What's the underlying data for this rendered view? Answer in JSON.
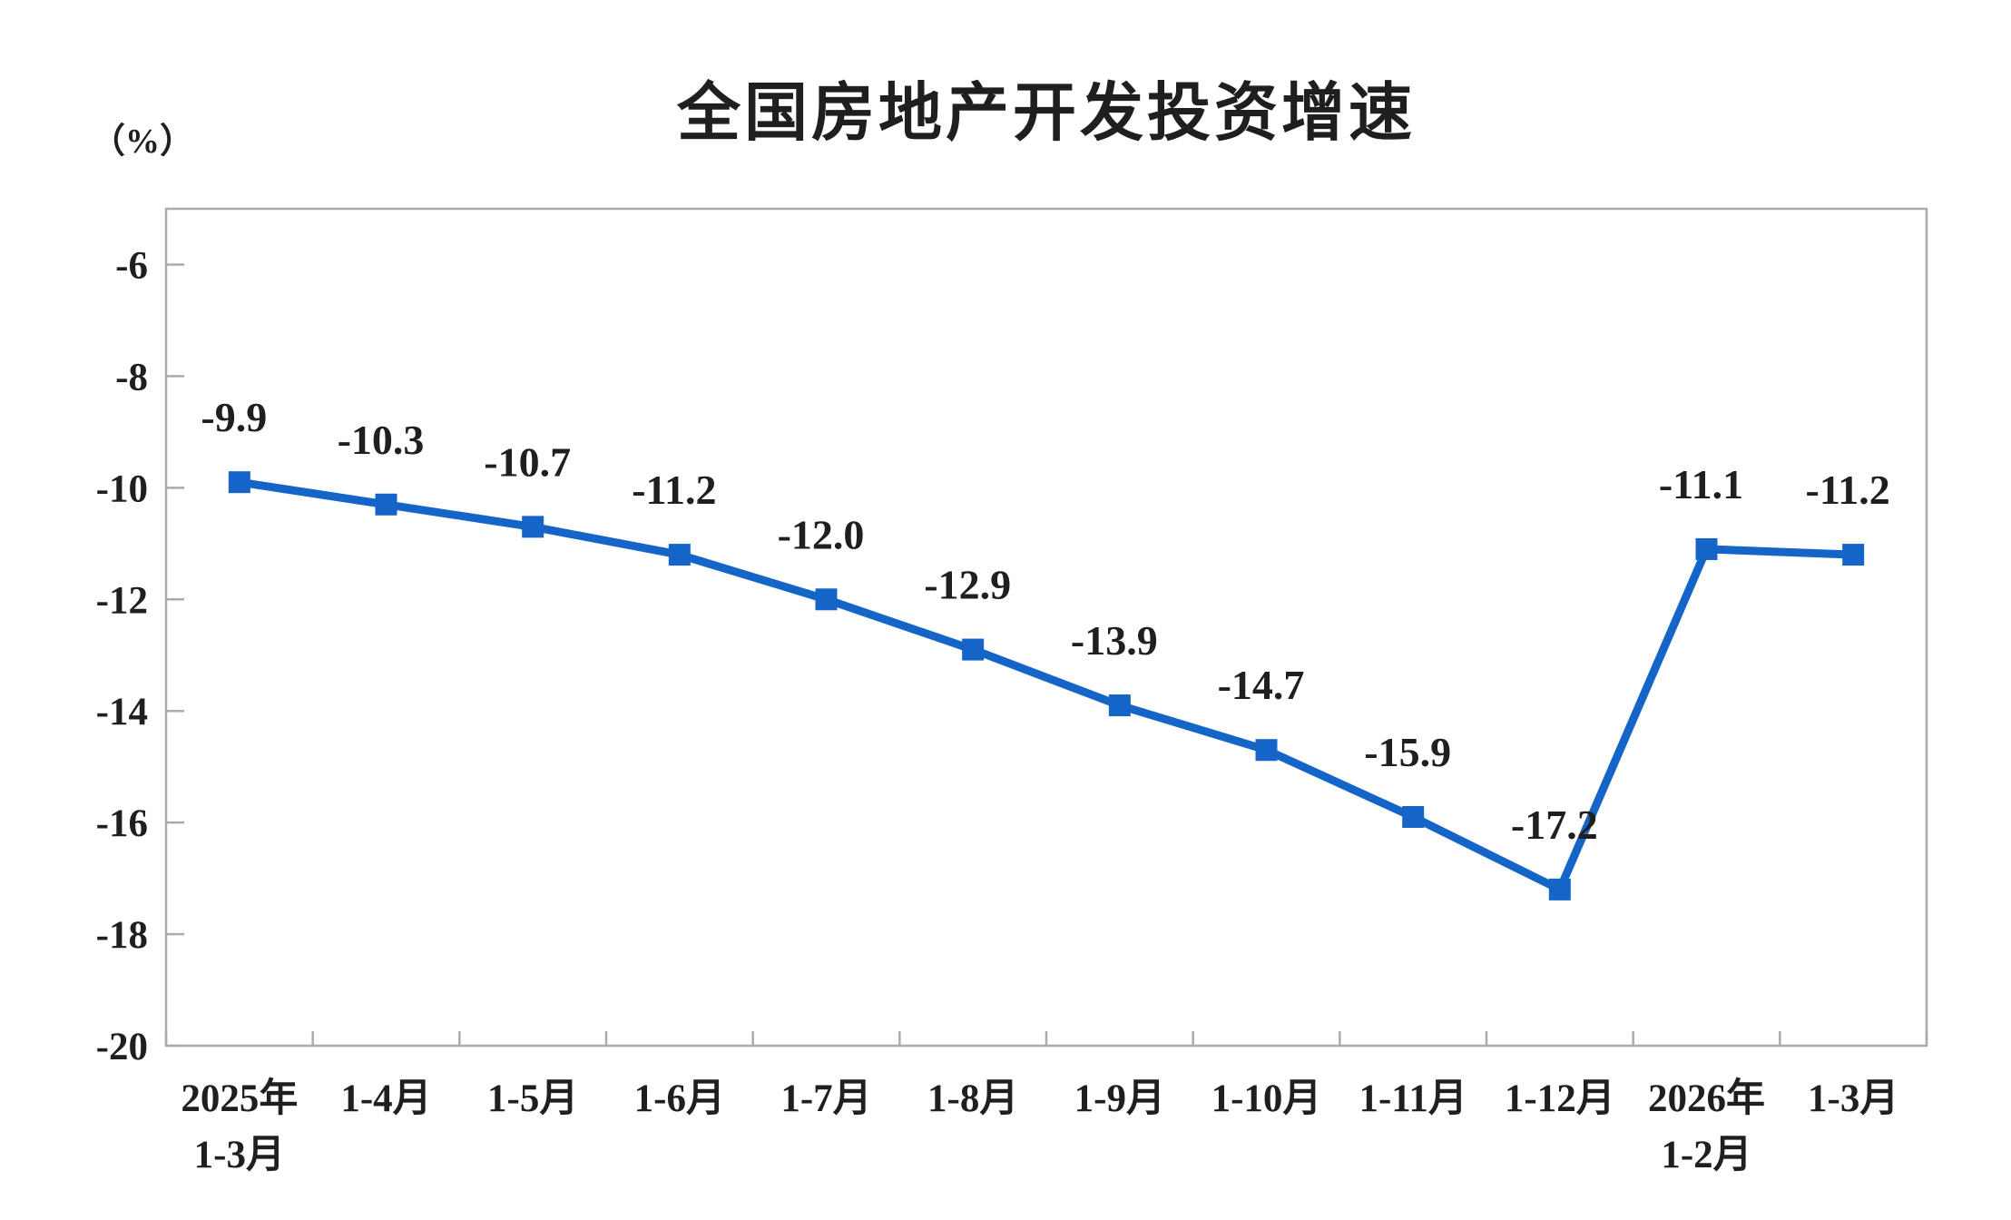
{
  "chart": {
    "title": "全国房地产开发投资增速",
    "unit_label": "（%）"
  },
  "chart_data": {
    "type": "line",
    "title": "全国房地产开发投资增速",
    "unit_label": "（%）",
    "categories": [
      [
        "2025年",
        "1-3月"
      ],
      [
        "1-4月"
      ],
      [
        "1-5月"
      ],
      [
        "1-6月"
      ],
      [
        "1-7月"
      ],
      [
        "1-8月"
      ],
      [
        "1-9月"
      ],
      [
        "1-10月"
      ],
      [
        "1-11月"
      ],
      [
        "1-12月"
      ],
      [
        "2026年",
        "1-2月"
      ],
      [
        "1-3月"
      ]
    ],
    "series": [
      {
        "name": "全国房地产开发投资增速",
        "values": [
          -9.9,
          -10.3,
          -10.7,
          -11.2,
          -12.0,
          -12.9,
          -13.9,
          -14.7,
          -15.9,
          -17.2,
          -11.1,
          -11.2
        ],
        "data_labels": [
          "-9.9",
          "-10.3",
          "-10.7",
          "-11.2",
          "-12.0",
          "-12.9",
          "-13.9",
          "-14.7",
          "-15.9",
          "-17.2",
          "-11.1",
          "-11.2"
        ]
      }
    ],
    "xlabel": "",
    "ylabel": "（%）",
    "y_ticks": [
      -6,
      -8,
      -10,
      -12,
      -14,
      -16,
      -18,
      -20
    ],
    "ylim": [
      -20,
      -5
    ],
    "grid": false,
    "legend": "none",
    "marker": "square",
    "colors": {
      "line": "#1565C8",
      "marker": "#1565C8",
      "axis_frame": "#ABABAB",
      "text": "#1F1F1F",
      "background": "#FFFFFF"
    }
  }
}
